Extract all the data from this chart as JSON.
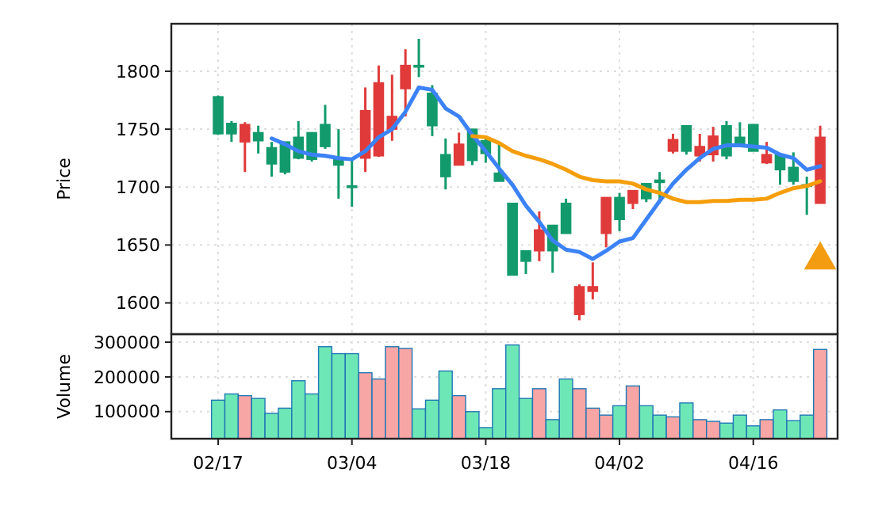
{
  "chart_data": [
    {
      "type": "candlestick",
      "ylabel": "Price",
      "ylim": [
        1573,
        1841
      ],
      "yticks": [
        1600,
        1650,
        1700,
        1750,
        1800
      ],
      "grid": true,
      "tick_labels": "y",
      "categories": [
        null,
        null,
        null,
        null,
        null,
        null,
        null,
        null,
        null,
        null,
        null,
        null,
        null,
        null,
        null,
        null,
        null,
        null,
        null,
        null,
        null,
        null,
        null,
        null,
        null,
        null,
        null,
        null,
        null,
        null,
        null,
        null,
        null,
        null,
        null,
        null,
        null,
        null,
        null,
        null,
        null,
        null,
        null,
        null,
        null,
        null
      ],
      "ohlc": [
        [
          1746,
          1779,
          1745,
          1778
        ],
        [
          1746,
          1757,
          1739,
          1755
        ],
        [
          1754,
          1756,
          1713,
          1739
        ],
        [
          1740,
          1753,
          1729,
          1747
        ],
        [
          1720,
          1739,
          1709,
          1734
        ],
        [
          1713,
          1739,
          1711,
          1739
        ],
        [
          1725,
          1757,
          1724,
          1743
        ],
        [
          1724,
          1747,
          1722,
          1747
        ],
        [
          1735,
          1771,
          1733,
          1754
        ],
        [
          1719,
          1750,
          1690,
          1724
        ],
        [
          1700,
          1724,
          1683,
          1701
        ],
        [
          1766,
          1786,
          1713,
          1725
        ],
        [
          1790,
          1805,
          1726,
          1727
        ],
        [
          1761,
          1797,
          1740,
          1750
        ],
        [
          1805,
          1819,
          1761,
          1785
        ],
        [
          1804,
          1828,
          1795,
          1805
        ],
        [
          1753,
          1788,
          1744,
          1781
        ],
        [
          1709,
          1742,
          1698,
          1728
        ],
        [
          1737,
          1747,
          1719,
          1719
        ],
        [
          1723,
          1750,
          1719,
          1750
        ],
        [
          1729,
          1744,
          1721,
          1740
        ],
        [
          1705,
          1738,
          1705,
          1712
        ],
        [
          1624,
          1686,
          1624,
          1686
        ],
        [
          1636,
          1645,
          1625,
          1645
        ],
        [
          1663,
          1679,
          1636,
          1645
        ],
        [
          1645,
          1667,
          1626,
          1667
        ],
        [
          1660,
          1690,
          1660,
          1686
        ],
        [
          1614,
          1616,
          1585,
          1590
        ],
        [
          1614,
          1635,
          1603,
          1610
        ],
        [
          1691,
          1691,
          1648,
          1660
        ],
        [
          1672,
          1695,
          1662,
          1691
        ],
        [
          1697,
          1697,
          1681,
          1686
        ],
        [
          1690,
          1703,
          1687,
          1703
        ],
        [
          1704,
          1713,
          1686,
          1706
        ],
        [
          1741,
          1746,
          1729,
          1731
        ],
        [
          1731,
          1753,
          1728,
          1753
        ],
        [
          1735,
          1746,
          1722,
          1727
        ],
        [
          1744,
          1752,
          1722,
          1728
        ],
        [
          1727,
          1757,
          1724,
          1753
        ],
        [
          1737,
          1756,
          1737,
          1743
        ],
        [
          1731,
          1754,
          1731,
          1754
        ],
        [
          1728,
          1739,
          1720,
          1721
        ],
        [
          1715,
          1728,
          1702,
          1728
        ],
        [
          1705,
          1730,
          1702,
          1717
        ],
        [
          1701,
          1709,
          1676,
          1702
        ],
        [
          1743,
          1753,
          1686,
          1686
        ]
      ],
      "colors": [
        "#129a6c",
        "#129a6c",
        "#e03a3a",
        "#129a6c",
        "#129a6c",
        "#129a6c",
        "#129a6c",
        "#129a6c",
        "#129a6c",
        "#129a6c",
        "#129a6c",
        "#e03a3a",
        "#e03a3a",
        "#e03a3a",
        "#e03a3a",
        "#129a6c",
        "#129a6c",
        "#129a6c",
        "#e03a3a",
        "#129a6c",
        "#129a6c",
        "#129a6c",
        "#129a6c",
        "#129a6c",
        "#e03a3a",
        "#129a6c",
        "#129a6c",
        "#e03a3a",
        "#e03a3a",
        "#e03a3a",
        "#129a6c",
        "#e03a3a",
        "#129a6c",
        "#129a6c",
        "#e03a3a",
        "#129a6c",
        "#e03a3a",
        "#e03a3a",
        "#129a6c",
        "#129a6c",
        "#129a6c",
        "#e03a3a",
        "#129a6c",
        "#129a6c",
        "#129a6c",
        "#e03a3a"
      ],
      "series": [
        {
          "type": "line",
          "color": "#3b82f6",
          "values": [
            null,
            null,
            null,
            null,
            1742,
            1737,
            1731,
            1728,
            1727,
            1725,
            1724,
            1731,
            1743,
            1750,
            1765,
            1786,
            1784,
            1768,
            1761,
            1745,
            1731,
            1716,
            1702,
            1684,
            1670,
            1654,
            1646,
            1644,
            1638,
            1645,
            1653,
            1656,
            1672,
            1688,
            1703,
            1715,
            1725,
            1733,
            1736,
            1736,
            1735,
            1734,
            1728,
            1725,
            1715,
            1718
          ]
        },
        {
          "type": "line",
          "color": "#f59e0b",
          "values": [
            null,
            null,
            null,
            null,
            null,
            null,
            null,
            null,
            null,
            null,
            null,
            null,
            null,
            null,
            null,
            null,
            null,
            null,
            null,
            1744,
            1743,
            1738,
            1731,
            1727,
            1724,
            1720,
            1715,
            1709,
            1706,
            1705,
            1705,
            1703,
            1698,
            1695,
            1690,
            1687,
            1687,
            1688,
            1688,
            1689,
            1689,
            1690,
            1695,
            1699,
            1701,
            1705
          ]
        },
        {
          "type": "scatter",
          "marker": "triangle",
          "color": "#f39c12",
          "values": [
            null,
            null,
            null,
            null,
            null,
            null,
            null,
            null,
            null,
            null,
            null,
            null,
            null,
            null,
            null,
            null,
            null,
            null,
            null,
            null,
            null,
            null,
            null,
            null,
            null,
            null,
            null,
            null,
            null,
            null,
            null,
            null,
            null,
            null,
            null,
            null,
            null,
            null,
            null,
            null,
            null,
            null,
            null,
            null,
            null,
            1637
          ]
        }
      ]
    },
    {
      "type": "bar",
      "ylabel": "Volume",
      "ylim": [
        22000,
        323000
      ],
      "yticks": [
        100000,
        200000,
        300000
      ],
      "grid": true,
      "categories": [
        "02/17",
        null,
        null,
        null,
        null,
        null,
        null,
        null,
        null,
        null,
        "03/04",
        null,
        null,
        null,
        null,
        null,
        null,
        null,
        null,
        null,
        "03/18",
        null,
        null,
        null,
        null,
        null,
        null,
        null,
        null,
        null,
        "04/02",
        null,
        null,
        null,
        null,
        null,
        null,
        null,
        null,
        null,
        "04/16",
        null,
        null,
        null,
        null,
        null
      ],
      "values": [
        133000,
        151000,
        146000,
        138000,
        95000,
        110000,
        189000,
        151000,
        287000,
        267000,
        267000,
        212000,
        194000,
        287000,
        282000,
        108000,
        133000,
        217000,
        146000,
        100000,
        54000,
        166000,
        292000,
        138000,
        166000,
        77000,
        194000,
        166000,
        110000,
        90000,
        117000,
        174000,
        117000,
        90000,
        85000,
        125000,
        77000,
        72000,
        67000,
        90000,
        59000,
        77000,
        105000,
        74000,
        90000,
        279000
      ],
      "colors": [
        "#6ee7b7",
        "#6ee7b7",
        "#f8a5a5",
        "#6ee7b7",
        "#6ee7b7",
        "#6ee7b7",
        "#6ee7b7",
        "#6ee7b7",
        "#6ee7b7",
        "#6ee7b7",
        "#6ee7b7",
        "#f8a5a5",
        "#f8a5a5",
        "#f8a5a5",
        "#f8a5a5",
        "#6ee7b7",
        "#6ee7b7",
        "#6ee7b7",
        "#f8a5a5",
        "#6ee7b7",
        "#6ee7b7",
        "#6ee7b7",
        "#6ee7b7",
        "#6ee7b7",
        "#f8a5a5",
        "#6ee7b7",
        "#6ee7b7",
        "#f8a5a5",
        "#f8a5a5",
        "#f8a5a5",
        "#6ee7b7",
        "#f8a5a5",
        "#6ee7b7",
        "#6ee7b7",
        "#f8a5a5",
        "#6ee7b7",
        "#f8a5a5",
        "#f8a5a5",
        "#6ee7b7",
        "#6ee7b7",
        "#6ee7b7",
        "#f8a5a5",
        "#6ee7b7",
        "#6ee7b7",
        "#6ee7b7",
        "#f8a5a5"
      ]
    }
  ]
}
